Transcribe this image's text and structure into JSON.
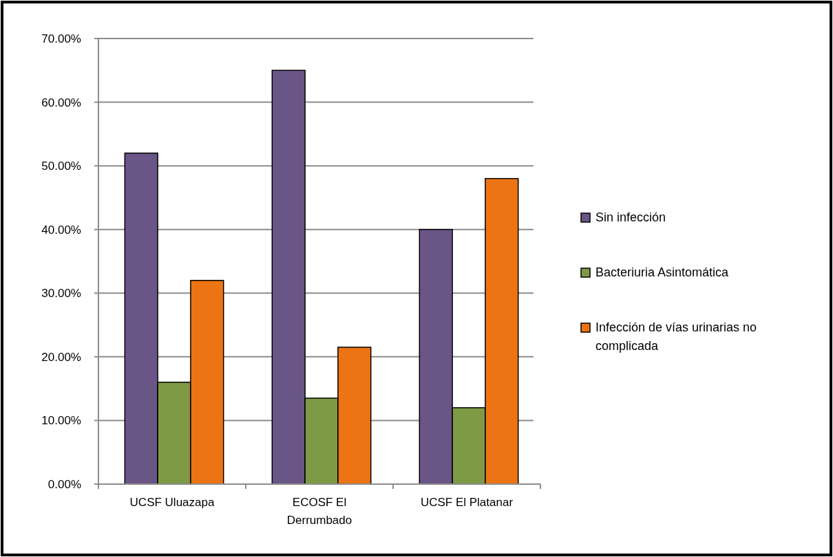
{
  "chart_data": {
    "type": "bar",
    "categories": [
      "UCSF Uluazapa",
      "ECOSF El Derrumbado",
      "UCSF El Platanar"
    ],
    "series": [
      {
        "name": "Sin infección",
        "color": "#6a5587",
        "values": [
          52,
          65,
          40
        ]
      },
      {
        "name": "Bacteriuria Asintomática",
        "color": "#7f9a45",
        "values": [
          16,
          13.5,
          12
        ]
      },
      {
        "name": "Infección de vías urinarias no complicada",
        "color": "#ec7414",
        "values": [
          32,
          21.5,
          48
        ]
      }
    ],
    "ylim": [
      0,
      70
    ],
    "yticks": [
      {
        "value": 0,
        "label": "0.00%"
      },
      {
        "value": 10,
        "label": "10.00%"
      },
      {
        "value": 20,
        "label": "20.00%"
      },
      {
        "value": 30,
        "label": "30.00%"
      },
      {
        "value": 40,
        "label": "40.00%"
      },
      {
        "value": 50,
        "label": "50.00%"
      },
      {
        "value": 60,
        "label": "60.00%"
      },
      {
        "value": 70,
        "label": "70.00%"
      }
    ],
    "grid": "y",
    "legend": "right"
  }
}
